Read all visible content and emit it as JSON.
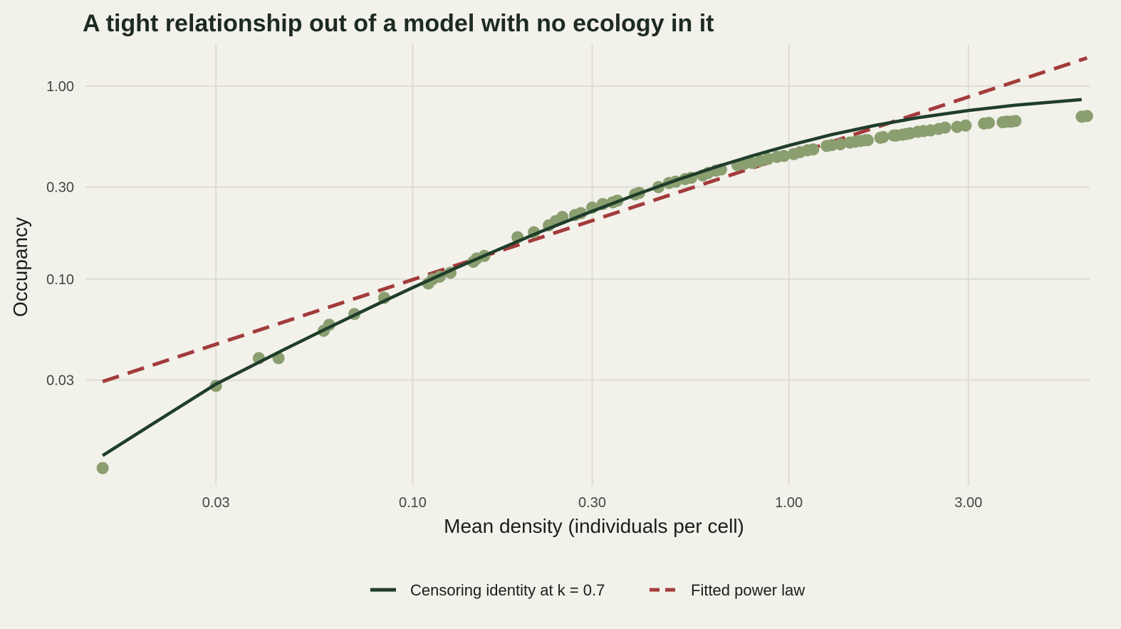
{
  "chart_data": {
    "type": "scatter",
    "title": "A tight relationship out of a model with no ecology in it",
    "xlabel": "Mean density (individuals per cell)",
    "ylabel": "Occupancy",
    "x_scale": "log",
    "y_scale": "log",
    "xlim": [
      0.0135,
      6.3
    ],
    "ylim": [
      0.0085,
      1.65
    ],
    "x_ticks": [
      0.03,
      0.1,
      0.3,
      1.0,
      3.0
    ],
    "x_tick_labels": [
      "0.03",
      "0.10",
      "0.30",
      "1.00",
      "3.00"
    ],
    "y_ticks": [
      0.03,
      0.1,
      0.3,
      1.0
    ],
    "y_tick_labels": [
      "0.03",
      "0.10",
      "0.30",
      "1.00"
    ],
    "grid": true,
    "legend_position": "bottom",
    "colors": {
      "points": "#8a9e70",
      "censoring_line": "#1f3d2b",
      "power_law": "#a33b3b"
    },
    "points": {
      "x": [
        0.015,
        0.03,
        0.039,
        0.044,
        0.058,
        0.06,
        0.07,
        0.084,
        0.11,
        0.113,
        0.118,
        0.126,
        0.145,
        0.148,
        0.155,
        0.19,
        0.21,
        0.23,
        0.24,
        0.25,
        0.27,
        0.28,
        0.3,
        0.32,
        0.34,
        0.35,
        0.39,
        0.4,
        0.45,
        0.48,
        0.5,
        0.53,
        0.55,
        0.59,
        0.61,
        0.64,
        0.66,
        0.73,
        0.76,
        0.8,
        0.84,
        0.88,
        0.93,
        0.97,
        1.03,
        1.07,
        1.12,
        1.16,
        1.26,
        1.3,
        1.37,
        1.45,
        1.5,
        1.55,
        1.6,
        1.62,
        1.75,
        1.78,
        1.9,
        1.93,
        2.0,
        2.05,
        2.1,
        2.2,
        2.28,
        2.38,
        2.5,
        2.6,
        2.8,
        2.95,
        3.3,
        3.4,
        3.7,
        3.8,
        3.9,
        4.0,
        6.0,
        6.2
      ],
      "y": [
        0.0105,
        0.028,
        0.039,
        0.039,
        0.054,
        0.058,
        0.066,
        0.08,
        0.095,
        0.1,
        0.103,
        0.108,
        0.123,
        0.128,
        0.132,
        0.165,
        0.175,
        0.19,
        0.2,
        0.21,
        0.215,
        0.22,
        0.235,
        0.245,
        0.25,
        0.255,
        0.275,
        0.28,
        0.3,
        0.315,
        0.32,
        0.33,
        0.335,
        0.345,
        0.355,
        0.365,
        0.37,
        0.39,
        0.395,
        0.4,
        0.41,
        0.42,
        0.43,
        0.435,
        0.445,
        0.455,
        0.465,
        0.47,
        0.49,
        0.495,
        0.5,
        0.51,
        0.515,
        0.52,
        0.525,
        0.525,
        0.54,
        0.545,
        0.555,
        0.555,
        0.56,
        0.565,
        0.57,
        0.58,
        0.585,
        0.59,
        0.6,
        0.61,
        0.615,
        0.625,
        0.64,
        0.645,
        0.65,
        0.655,
        0.655,
        0.66,
        0.695,
        0.7
      ]
    },
    "series": [
      {
        "name": "Censoring identity at k = 0.7",
        "style": "solid",
        "x": [
          0.015,
          0.02,
          0.03,
          0.045,
          0.06,
          0.08,
          0.1,
          0.13,
          0.17,
          0.22,
          0.3,
          0.4,
          0.5,
          0.65,
          0.8,
          1.0,
          1.3,
          1.7,
          2.2,
          3.0,
          4.0,
          6.0
        ],
        "y": [
          0.0122,
          0.0174,
          0.0286,
          0.0427,
          0.0563,
          0.0737,
          0.0904,
          0.114,
          0.143,
          0.177,
          0.225,
          0.278,
          0.325,
          0.385,
          0.436,
          0.493,
          0.561,
          0.627,
          0.686,
          0.748,
          0.797,
          0.852
        ]
      },
      {
        "name": "Fitted power law",
        "style": "dashed",
        "x": [
          0.015,
          6.2
        ],
        "y": [
          0.0295,
          1.4
        ]
      }
    ]
  }
}
